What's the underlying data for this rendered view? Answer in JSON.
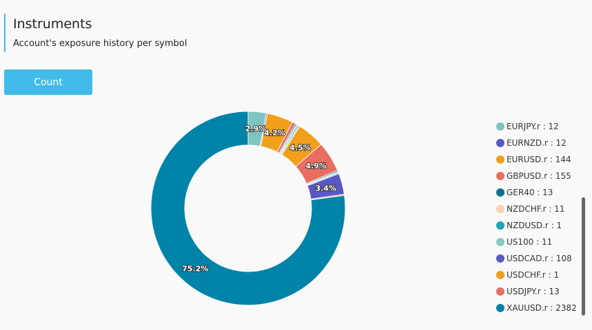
{
  "header": {
    "title": "Instruments",
    "subtitle": "Account's exposure history per symbol"
  },
  "toolbar": {
    "count_label": "Count"
  },
  "chart_data": {
    "type": "pie",
    "donut": true,
    "title": "",
    "legend_position": "right",
    "series": [
      {
        "name": "EURJPY.r",
        "value": 12,
        "color": "#7ec4bf"
      },
      {
        "name": "EURNZD.r",
        "value": 12,
        "color": "#5b57c4"
      },
      {
        "name": "EURUSD.r",
        "value": 144,
        "color": "#f29f1c"
      },
      {
        "name": "GBPUSD.r",
        "value": 155,
        "color": "#ea6d62"
      },
      {
        "name": "GER40",
        "value": 13,
        "color": "#0d728e"
      },
      {
        "name": "NZDCHF.r",
        "value": 11,
        "color": "#fbd2b5"
      },
      {
        "name": "NZDUSD.r",
        "value": 1,
        "color": "#1ba7b4"
      },
      {
        "name": "US100",
        "value": 11,
        "color": "#86c9c5"
      },
      {
        "name": "USDCAD.r",
        "value": 108,
        "color": "#5b57c4"
      },
      {
        "name": "USDCHF.r",
        "value": 1,
        "color": "#f29f1c"
      },
      {
        "name": "USDJPY.r",
        "value": 13,
        "color": "#ea6d62"
      },
      {
        "name": "XAUUSD.r",
        "value": 2382,
        "color": "#0083a8"
      }
    ],
    "slice_labels": [
      {
        "series": "EURJPY.r",
        "text": "2.9%"
      },
      {
        "series": "EURUSD.r",
        "text": "4.2%"
      },
      {
        "series": "USDCHF.r",
        "text": "4.5%"
      },
      {
        "series": "USDJPY.r",
        "text": "4.9%"
      },
      {
        "series": "USDCAD.r",
        "text": "3.4%"
      },
      {
        "series": "XAUUSD.r",
        "text": "75.2%"
      }
    ],
    "draw_order": [
      "EURJPY.r",
      "EURNZD.r",
      "EURUSD.r",
      "GBPUSD.r",
      "GER40",
      "NZDCHF.r",
      "NZDUSD.r",
      "US100",
      "USDCHF.r",
      "USDJPY.r",
      "GER40",
      "NZDUSD.r",
      "US100",
      "USDCAD.r",
      "GBPUSD.r",
      "XAUUSD.r"
    ],
    "draw_values": [
      93,
      6,
      134,
      18,
      7,
      5,
      7,
      6,
      142,
      157,
      7,
      4,
      7,
      108,
      6,
      2384
    ]
  }
}
